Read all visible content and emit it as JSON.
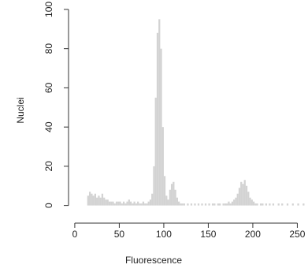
{
  "chart_data": {
    "type": "histogram",
    "xlabel": "Fluorescence",
    "ylabel": "Nuclei",
    "color": "#d3d3d3",
    "bins": [
      14,
      16,
      18,
      20,
      22,
      24,
      26,
      28,
      30,
      32,
      34,
      36,
      38,
      40,
      42,
      44,
      46,
      48,
      50,
      52,
      54,
      56,
      58,
      60,
      62,
      64,
      66,
      68,
      70,
      72,
      74,
      76,
      78,
      80,
      82,
      84,
      86,
      88,
      90,
      92,
      94,
      96,
      98,
      100,
      102,
      104,
      106,
      108,
      110,
      112,
      114,
      116,
      118,
      120,
      122,
      124,
      126,
      128,
      130,
      132,
      134,
      136,
      138,
      140,
      142,
      144,
      146,
      148,
      150,
      152,
      154,
      156,
      158,
      160,
      162,
      164,
      166,
      168,
      170,
      172,
      174,
      176,
      178,
      180,
      182,
      184,
      186,
      188,
      190,
      192,
      194,
      196,
      198,
      200,
      202,
      204,
      206,
      208,
      210,
      212,
      214,
      216,
      218,
      220,
      222,
      224,
      226,
      228,
      230,
      232,
      234,
      236,
      238,
      240,
      242,
      244,
      246,
      248,
      250,
      252,
      254,
      256,
      258,
      260
    ],
    "counts": [
      5,
      7,
      6,
      5,
      6,
      4,
      5,
      4,
      6,
      4,
      3,
      3,
      2,
      2,
      2,
      1,
      2,
      2,
      2,
      1,
      2,
      1,
      2,
      3,
      2,
      1,
      2,
      1,
      2,
      1,
      1,
      2,
      1,
      1,
      2,
      3,
      6,
      20,
      55,
      88,
      95,
      80,
      40,
      15,
      5,
      3,
      8,
      11,
      12,
      8,
      4,
      2,
      1,
      1,
      1,
      0,
      1,
      0,
      1,
      0,
      1,
      0,
      1,
      0,
      1,
      0,
      1,
      0,
      1,
      0,
      1,
      1,
      0,
      1,
      1,
      0,
      1,
      1,
      1,
      2,
      1,
      2,
      3,
      4,
      6,
      9,
      12,
      11,
      13,
      10,
      7,
      4,
      3,
      2,
      1,
      1,
      0,
      1,
      1,
      0,
      1,
      0,
      1,
      0,
      1,
      0,
      0,
      1,
      0,
      1,
      0,
      0,
      1,
      0,
      0,
      1,
      0,
      0,
      1,
      0,
      0,
      1,
      0
    ],
    "xlim": [
      -7,
      262
    ],
    "ylim": [
      -9,
      104
    ],
    "xticks": [
      0,
      50,
      100,
      150,
      200,
      250
    ],
    "yticks": [
      0,
      20,
      40,
      60,
      80,
      100
    ]
  }
}
